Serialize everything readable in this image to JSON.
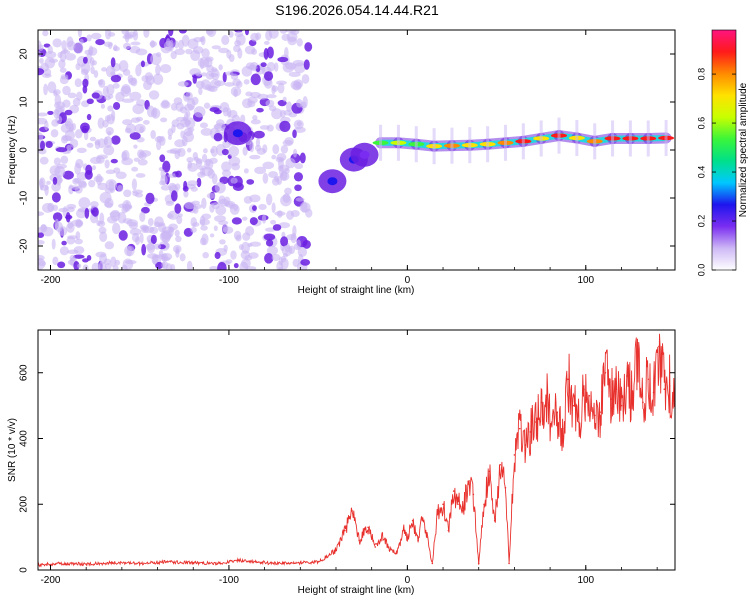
{
  "title": "S196.2026.054.14.44.R21",
  "colors": {
    "snr_line": "#e8312d",
    "spec_core": "#e0202a",
    "spec_mid": "#27d7df",
    "spec_low": "#6a1ee0",
    "spec_faint": "#c9b6f4"
  },
  "chart_data": [
    {
      "type": "heatmap",
      "name": "spectrogram",
      "xlabel": "Height of straight line (km)",
      "ylabel": "Frequency (Hz)",
      "xlim": [
        -207,
        150
      ],
      "ylim": [
        -25,
        25
      ],
      "xticks": [
        -200,
        -100,
        0,
        100
      ],
      "xtick_labels": [
        "-200",
        "-100",
        "0",
        "100"
      ],
      "yticks": [
        -20,
        -10,
        0,
        10,
        20
      ],
      "ytick_labels": [
        "-20",
        "-10",
        "0",
        "10",
        "20"
      ],
      "colorbar": {
        "label": "Normalized spectral amplitude",
        "range": [
          0.0,
          0.98
        ],
        "ticks": [
          0.0,
          0.2,
          0.4,
          0.6,
          0.8
        ],
        "tick_labels": [
          "0.0",
          "0.2",
          "0.4",
          "0.6",
          "0.8"
        ],
        "stops": [
          "#ffffff",
          "#cdb8f5",
          "#7a2df0",
          "#1d16ee",
          "#00c8ff",
          "#00e08a",
          "#3af53a",
          "#c8ff00",
          "#ffe200",
          "#ff8a00",
          "#ff1a1a",
          "#ff1480"
        ]
      },
      "noise_region_x": [
        -207,
        -55
      ],
      "transition_blobs": [
        {
          "x": -95,
          "f": 3.5,
          "amp": 0.28
        },
        {
          "x": -42,
          "f": -6.5,
          "amp": 0.3
        },
        {
          "x": -30,
          "f": -2.0,
          "amp": 0.26
        },
        {
          "x": -24,
          "f": -1.0,
          "amp": 0.22
        }
      ],
      "ridge": [
        {
          "x": -15,
          "f": 1.5,
          "amp": 0.55
        },
        {
          "x": -5,
          "f": 1.5,
          "amp": 0.62
        },
        {
          "x": 5,
          "f": 1.2,
          "amp": 0.55
        },
        {
          "x": 15,
          "f": 0.8,
          "amp": 0.75
        },
        {
          "x": 25,
          "f": 0.9,
          "amp": 0.78
        },
        {
          "x": 35,
          "f": 1.0,
          "amp": 0.75
        },
        {
          "x": 45,
          "f": 1.2,
          "amp": 0.7
        },
        {
          "x": 55,
          "f": 1.5,
          "amp": 0.8
        },
        {
          "x": 65,
          "f": 1.8,
          "amp": 0.85
        },
        {
          "x": 75,
          "f": 2.4,
          "amp": 0.72
        },
        {
          "x": 85,
          "f": 3.0,
          "amp": 0.85
        },
        {
          "x": 95,
          "f": 2.5,
          "amp": 0.75
        },
        {
          "x": 105,
          "f": 1.8,
          "amp": 0.8
        },
        {
          "x": 115,
          "f": 2.4,
          "amp": 0.85
        },
        {
          "x": 125,
          "f": 2.4,
          "amp": 0.88
        },
        {
          "x": 135,
          "f": 2.4,
          "amp": 0.9
        },
        {
          "x": 145,
          "f": 2.5,
          "amp": 0.88
        }
      ]
    },
    {
      "type": "line",
      "name": "snr",
      "xlabel": "Height of straight line (km)",
      "ylabel": "SNR (10 * v/v)",
      "xlim": [
        -207,
        150
      ],
      "ylim": [
        0,
        730
      ],
      "xticks": [
        -200,
        -100,
        0,
        100
      ],
      "xtick_labels": [
        "-200",
        "-100",
        "0",
        "100"
      ],
      "yticks": [
        0,
        200,
        400,
        600
      ],
      "ytick_labels": [
        "0",
        "200",
        "400",
        "600"
      ],
      "series": [
        {
          "name": "SNR",
          "x": [
            -207,
            -195,
            -180,
            -165,
            -150,
            -135,
            -120,
            -105,
            -95,
            -85,
            -75,
            -60,
            -50,
            -40,
            -35,
            -31,
            -27,
            -22,
            -18,
            -14,
            -10,
            -6,
            -2,
            0,
            3,
            6,
            8,
            11,
            14,
            17,
            20,
            23,
            26,
            29,
            31,
            34,
            37,
            40,
            43,
            46,
            49,
            52,
            55,
            57,
            60,
            63,
            66,
            69,
            72,
            75,
            78,
            81,
            84,
            87,
            90,
            93,
            96,
            99,
            102,
            105,
            108,
            111,
            114,
            117,
            120,
            123,
            126,
            129,
            132,
            135,
            138,
            141,
            144,
            147,
            150
          ],
          "y": [
            15,
            20,
            18,
            22,
            20,
            25,
            22,
            20,
            30,
            25,
            20,
            22,
            25,
            60,
            120,
            180,
            90,
            130,
            70,
            110,
            60,
            50,
            120,
            100,
            150,
            90,
            160,
            100,
            20,
            180,
            200,
            120,
            240,
            200,
            180,
            260,
            230,
            20,
            200,
            300,
            150,
            320,
            250,
            20,
            350,
            430,
            380,
            420,
            450,
            510,
            520,
            450,
            480,
            430,
            580,
            500,
            450,
            550,
            530,
            470,
            480,
            600,
            520,
            550,
            500,
            590,
            520,
            650,
            510,
            580,
            540,
            680,
            550,
            560,
            500
          ]
        }
      ]
    }
  ]
}
